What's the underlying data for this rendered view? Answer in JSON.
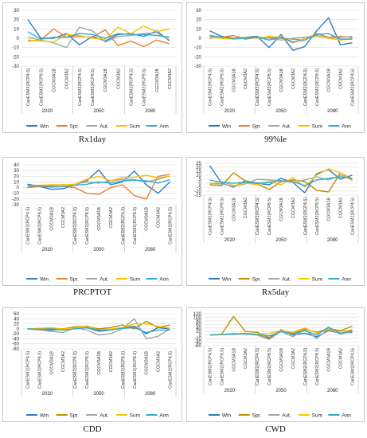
{
  "colors": {
    "Win": "#2f7cc0",
    "Spr_orange": "#ed7d31",
    "Spr_gold": "#bf9000",
    "Aut": "#a5a5a5",
    "Sum": "#ffc000",
    "Ann": "#2eacd1"
  },
  "categories": [
    "CanESM2(RCP4.5)",
    "CanESM2(RCP8.5)",
    "CGCM3A1B",
    "CGCM3A2"
  ],
  "periods": [
    "2020",
    "2050",
    "2080"
  ],
  "chart_data": [
    {
      "type": "line",
      "caption": "Rx1day",
      "ylim": [
        -30,
        30
      ],
      "yticks": [
        -30,
        -20,
        -10,
        0,
        10,
        20,
        30
      ],
      "tick_labels": [
        "-30",
        "-20",
        "-10",
        "0",
        "10",
        "20",
        "30"
      ],
      "legend_position": "bottom",
      "spr_color": "Spr_orange",
      "series": [
        {
          "name": "Win",
          "values": [
            20,
            0,
            0,
            5,
            -7,
            2,
            -3,
            4,
            5,
            2,
            8,
            -3
          ]
        },
        {
          "name": "Spr.",
          "values": [
            -3,
            -2,
            10,
            1,
            2,
            1,
            9,
            -8,
            -3,
            -9,
            -2,
            -6
          ]
        },
        {
          "name": "Aut.",
          "values": [
            1,
            -2,
            -5,
            -10,
            12,
            8,
            -4,
            2,
            3,
            5,
            6,
            -2
          ]
        },
        {
          "name": "Sum",
          "values": [
            -2,
            -3,
            -4,
            4,
            3,
            0,
            -1,
            12,
            5,
            13,
            7,
            10
          ]
        },
        {
          "name": "Ann",
          "values": [
            7,
            -1,
            1,
            1,
            5,
            4,
            0,
            5,
            4,
            4,
            3,
            1
          ]
        }
      ]
    },
    {
      "type": "line",
      "caption": "99%le",
      "ylim": [
        -30,
        30
      ],
      "yticks": [
        -30,
        -20,
        -10,
        0,
        10,
        20,
        30
      ],
      "tick_labels": [
        "-30",
        "-20",
        "-10",
        "0",
        "10",
        "20",
        "30"
      ],
      "legend_position": "bottom",
      "spr_color": "Spr_orange",
      "series": [
        {
          "name": "Win",
          "values": [
            8,
            2,
            0,
            1,
            2,
            -10,
            4,
            -13,
            -9,
            8,
            22,
            -7,
            -5
          ]
        },
        {
          "name": "Spr.",
          "values": [
            2,
            1,
            3,
            -1,
            1,
            1,
            0,
            -1,
            -2,
            5,
            1,
            2,
            1
          ]
        },
        {
          "name": "Aut.",
          "values": [
            0,
            1,
            -1,
            0,
            1,
            0,
            -2,
            0,
            1,
            3,
            0,
            1,
            2
          ]
        },
        {
          "name": "Sum",
          "values": [
            1,
            0,
            -1,
            1,
            0,
            2,
            1,
            -5,
            0,
            2,
            0,
            -2,
            0
          ]
        },
        {
          "name": "Ann",
          "values": [
            3,
            1,
            0,
            0,
            1,
            -2,
            1,
            -4,
            -2,
            4,
            5,
            -1,
            -1
          ]
        }
      ]
    },
    {
      "type": "line",
      "caption": "PRCPTOT",
      "ylim": [
        -30,
        40
      ],
      "yticks": [
        -30,
        -20,
        -10,
        0,
        10,
        20,
        30,
        40
      ],
      "tick_labels": [
        "-30",
        "-20",
        "-10",
        "0",
        "10",
        "20",
        "30",
        "40"
      ],
      "legend_position": "bottom",
      "spr_color": "Spr_orange",
      "series": [
        {
          "name": "Win",
          "values": [
            6,
            2,
            -3,
            -2,
            5,
            12,
            31,
            5,
            10,
            29,
            5,
            -10,
            10
          ]
        },
        {
          "name": "Spr.",
          "values": [
            0,
            2,
            1,
            2,
            0,
            -10,
            -12,
            0,
            5,
            -14,
            -20,
            20,
            23
          ]
        },
        {
          "name": "Aut.",
          "values": [
            2,
            3,
            4,
            5,
            6,
            10,
            8,
            12,
            15,
            14,
            10,
            15,
            20
          ]
        },
        {
          "name": "Sum",
          "values": [
            3,
            4,
            5,
            5,
            6,
            15,
            20,
            12,
            18,
            18,
            22,
            17,
            20
          ]
        },
        {
          "name": "Ann",
          "values": [
            4,
            3,
            2,
            2,
            4,
            6,
            10,
            8,
            12,
            13,
            12,
            8,
            14
          ]
        }
      ]
    },
    {
      "type": "line",
      "caption": "Rx5day",
      "ylim": [
        -15,
        25
      ],
      "yticks": [
        -15,
        -10,
        -5,
        0,
        5,
        10,
        15,
        20,
        25
      ],
      "tick_labels": [
        "-15",
        "-10",
        "-5",
        "0",
        "5",
        "10",
        "15",
        "20",
        "25"
      ],
      "legend_position": "bottom",
      "spr_color": "Spr_gold",
      "series": [
        {
          "name": "Win",
          "values": [
            22,
            0,
            -5,
            3,
            0,
            -2,
            6,
            1,
            -12,
            12,
            17,
            5,
            10
          ]
        },
        {
          "name": "Spr.",
          "values": [
            -2,
            -3,
            13,
            3,
            -1,
            -8,
            2,
            4,
            2,
            -9,
            -11,
            13,
            5
          ]
        },
        {
          "name": "Aut.",
          "values": [
            0,
            -1,
            -4,
            -1,
            5,
            4,
            3,
            1,
            4,
            8,
            4,
            10,
            6
          ]
        },
        {
          "name": "Sum",
          "values": [
            -1,
            2,
            -3,
            0,
            -2,
            2,
            -2,
            7,
            -5,
            10,
            18,
            13,
            3
          ]
        },
        {
          "name": "Ann",
          "values": [
            4,
            1,
            0,
            1,
            0,
            1,
            3,
            2,
            -3,
            4,
            6,
            8,
            6
          ]
        }
      ]
    },
    {
      "type": "line",
      "caption": "CDD",
      "ylim": [
        -80,
        60
      ],
      "yticks": [
        -80,
        -60,
        -40,
        -20,
        0,
        20,
        40,
        60
      ],
      "tick_labels": [
        "-80",
        "-60",
        "-40",
        "-20",
        "0",
        "20",
        "40",
        "60"
      ],
      "legend_position": "bottom",
      "spr_color": "Spr_gold",
      "series": [
        {
          "name": "Win",
          "values": [
            0,
            0,
            -5,
            -2,
            0,
            5,
            -10,
            -5,
            5,
            10,
            -20,
            5,
            0
          ]
        },
        {
          "name": "Spr.",
          "values": [
            0,
            0,
            2,
            0,
            8,
            10,
            0,
            5,
            15,
            0,
            30,
            5,
            15
          ]
        },
        {
          "name": "Aut.",
          "values": [
            0,
            -5,
            -10,
            -15,
            5,
            -5,
            -25,
            -20,
            0,
            40,
            -40,
            -30,
            0
          ]
        },
        {
          "name": "Sum",
          "values": [
            0,
            2,
            4,
            0,
            2,
            12,
            -5,
            0,
            5,
            20,
            20,
            10,
            2
          ]
        },
        {
          "name": "Ann",
          "values": [
            0,
            -2,
            0,
            -5,
            0,
            5,
            -5,
            -5,
            2,
            5,
            -15,
            -5,
            -5
          ]
        }
      ]
    },
    {
      "type": "line",
      "caption": "CWD",
      "ylim": [
        -60,
        120
      ],
      "yticks": [
        -60,
        -40,
        -20,
        0,
        20,
        40,
        60,
        80,
        100,
        120
      ],
      "tick_labels": [
        "-60",
        "-40",
        "-20",
        "0",
        "20",
        "40",
        "60",
        "80",
        "100",
        "120"
      ],
      "legend_position": "bottom",
      "spr_color": "Spr_gold",
      "series": [
        {
          "name": "Win",
          "values": [
            0,
            2,
            5,
            8,
            0,
            -20,
            30,
            0,
            10,
            -10,
            25,
            10,
            15
          ]
        },
        {
          "name": "Spr.",
          "values": [
            0,
            5,
            105,
            20,
            15,
            -15,
            25,
            10,
            35,
            15,
            35,
            25,
            50
          ]
        },
        {
          "name": "Aut.",
          "values": [
            0,
            2,
            10,
            5,
            0,
            -25,
            20,
            -10,
            30,
            -20,
            35,
            5,
            20
          ]
        },
        {
          "name": "Sum",
          "values": [
            0,
            3,
            8,
            10,
            5,
            10,
            25,
            15,
            40,
            10,
            30,
            20,
            30
          ]
        },
        {
          "name": "Ann",
          "values": [
            0,
            2,
            5,
            8,
            2,
            -5,
            20,
            5,
            25,
            0,
            45,
            10,
            25
          ]
        }
      ]
    }
  ]
}
